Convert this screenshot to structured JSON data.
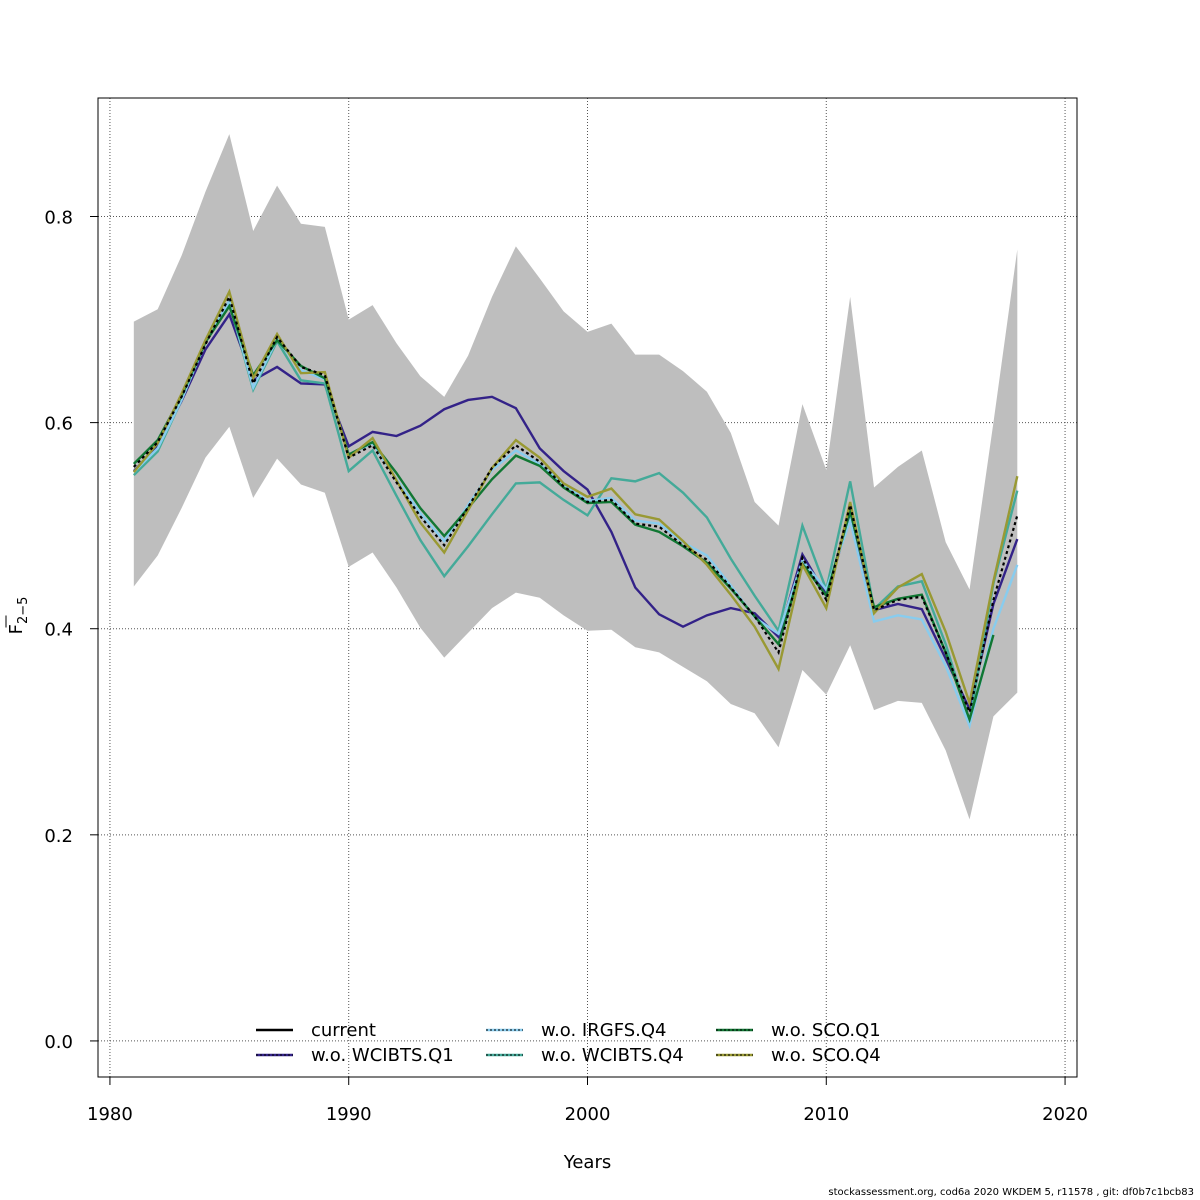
{
  "chart_data": {
    "type": "line",
    "title": "",
    "xlabel": "Years",
    "ylabel_base": "F",
    "ylabel_sub": "2−5",
    "xlim": [
      1979.5,
      2020.5
    ],
    "ylim": [
      -0.035,
      0.915
    ],
    "x_ticks": [
      1980,
      1990,
      2000,
      2010,
      2020
    ],
    "x_tick_labels": [
      "1980",
      "1990",
      "2000",
      "2010",
      "2020"
    ],
    "y_ticks": [
      0.0,
      0.2,
      0.4,
      0.6,
      0.8
    ],
    "y_tick_labels": [
      "0.0",
      "0.2",
      "0.4",
      "0.6",
      "0.8"
    ],
    "grid": true,
    "legend_position": "bottom-center",
    "years": [
      1981,
      1982,
      1983,
      1984,
      1985,
      1986,
      1987,
      1988,
      1989,
      1990,
      1991,
      1992,
      1993,
      1994,
      1995,
      1996,
      1997,
      1998,
      1999,
      2000,
      2001,
      2002,
      2003,
      2004,
      2005,
      2006,
      2007,
      2008,
      2009,
      2010,
      2011,
      2012,
      2013,
      2014,
      2015,
      2016,
      2017,
      2018
    ],
    "confidence_band": {
      "color": "#bebebe",
      "upper": [
        0.698,
        0.71,
        0.762,
        0.824,
        0.88,
        0.786,
        0.83,
        0.793,
        0.79,
        0.7,
        0.714,
        0.677,
        0.645,
        0.625,
        0.665,
        0.722,
        0.771,
        0.74,
        0.708,
        0.688,
        0.696,
        0.666,
        0.666,
        0.65,
        0.63,
        0.59,
        0.523,
        0.5,
        0.618,
        0.554,
        0.722,
        0.537,
        0.557,
        0.573,
        0.484,
        0.438,
        0.6,
        0.768
      ],
      "lower": [
        0.441,
        0.471,
        0.517,
        0.566,
        0.596,
        0.527,
        0.565,
        0.54,
        0.532,
        0.46,
        0.474,
        0.44,
        0.401,
        0.372,
        0.396,
        0.42,
        0.435,
        0.43,
        0.413,
        0.398,
        0.399,
        0.382,
        0.377,
        0.363,
        0.349,
        0.327,
        0.318,
        0.285,
        0.36,
        0.336,
        0.384,
        0.321,
        0.33,
        0.328,
        0.282,
        0.215,
        0.315,
        0.338
      ]
    },
    "series": [
      {
        "name": "current",
        "color": "#000000",
        "dashed": false,
        "values": [
          0.557,
          0.581,
          0.625,
          0.676,
          0.722,
          0.638,
          0.683,
          0.654,
          0.646,
          0.566,
          0.578,
          0.542,
          0.509,
          0.481,
          0.518,
          0.556,
          0.578,
          0.562,
          0.538,
          0.523,
          0.525,
          0.502,
          0.499,
          0.481,
          0.467,
          0.44,
          0.412,
          0.377,
          0.469,
          0.428,
          0.52,
          0.418,
          0.428,
          0.431,
          0.377,
          0.319,
          0.428,
          0.51
        ]
      },
      {
        "name": "w.o. WCIBTS.Q1",
        "color": "#332288",
        "dashed": false,
        "values": [
          0.553,
          0.577,
          0.621,
          0.671,
          0.705,
          0.641,
          0.654,
          0.638,
          0.637,
          0.577,
          0.591,
          0.587,
          0.597,
          0.613,
          0.622,
          0.625,
          0.614,
          0.575,
          0.553,
          0.535,
          0.494,
          0.44,
          0.414,
          0.402,
          0.413,
          0.42,
          0.415,
          0.392,
          0.472,
          0.433,
          0.509,
          0.418,
          0.424,
          0.419,
          0.371,
          0.322,
          0.424,
          0.487
        ]
      },
      {
        "name": "w.o. IRGFS.Q4",
        "color": "#88ccee",
        "dashed": true,
        "values": [
          0.552,
          0.575,
          0.622,
          0.678,
          0.718,
          0.634,
          0.681,
          0.651,
          0.642,
          0.569,
          0.58,
          0.545,
          0.512,
          0.485,
          0.52,
          0.554,
          0.573,
          0.56,
          0.54,
          0.524,
          0.527,
          0.505,
          0.502,
          0.484,
          0.471,
          0.442,
          0.411,
          0.395,
          0.466,
          0.438,
          0.505,
          0.407,
          0.413,
          0.409,
          0.364,
          0.306,
          0.4,
          0.462
        ]
      },
      {
        "name": "w.o. WCIBTS.Q4",
        "color": "#44aa99",
        "dashed": false,
        "values": [
          0.549,
          0.572,
          0.622,
          0.679,
          0.716,
          0.632,
          0.679,
          0.641,
          0.638,
          0.553,
          0.573,
          0.529,
          0.486,
          0.451,
          0.48,
          0.511,
          0.541,
          0.542,
          0.525,
          0.51,
          0.546,
          0.543,
          0.551,
          0.532,
          0.508,
          0.468,
          0.432,
          0.398,
          0.5,
          0.438,
          0.543,
          0.419,
          0.441,
          0.446,
          0.385,
          0.31,
          0.444,
          0.534
        ]
      },
      {
        "name": "w.o. SCO.Q1",
        "color": "#117733",
        "dashed": false,
        "values": [
          0.56,
          0.583,
          0.626,
          0.678,
          0.713,
          0.646,
          0.68,
          0.655,
          0.643,
          0.569,
          0.581,
          0.551,
          0.517,
          0.49,
          0.517,
          0.545,
          0.568,
          0.558,
          0.537,
          0.522,
          0.523,
          0.501,
          0.494,
          0.48,
          0.464,
          0.439,
          0.412,
          0.385,
          0.463,
          0.432,
          0.514,
          0.421,
          0.429,
          0.433,
          0.377,
          0.312,
          0.394,
          null
        ]
      },
      {
        "name": "w.o. SCO.Q4",
        "color": "#999933",
        "dashed": false,
        "values": [
          0.552,
          0.58,
          0.628,
          0.68,
          0.727,
          0.643,
          0.686,
          0.648,
          0.649,
          0.566,
          0.585,
          0.544,
          0.503,
          0.474,
          0.515,
          0.556,
          0.583,
          0.566,
          0.541,
          0.528,
          0.536,
          0.511,
          0.506,
          0.485,
          0.462,
          0.433,
          0.402,
          0.361,
          0.462,
          0.42,
          0.523,
          0.415,
          0.44,
          0.453,
          0.397,
          0.328,
          0.446,
          0.548
        ]
      }
    ]
  },
  "footer": "stockassessment.org, cod6a  2020  WKDEM  5, r11578 , git: df0b7c1bcb83"
}
